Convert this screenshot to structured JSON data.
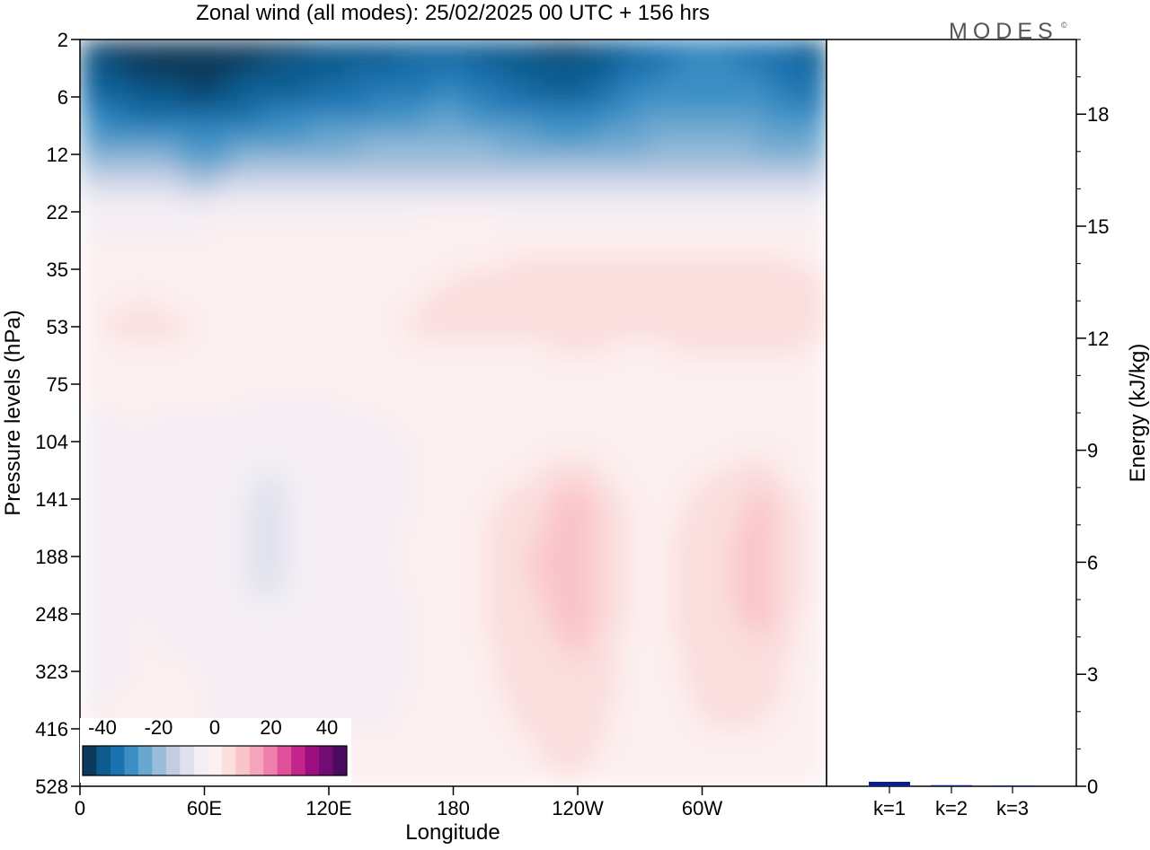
{
  "chart_data": [
    {
      "type": "heatmap",
      "title": "Zonal wind (all modes):  25/02/2025  00 UTC  + 156 hrs",
      "xlabel": "Longitude",
      "ylabel": "Pressure levels (hPa)",
      "x_ticks": [
        "0",
        "60E",
        "120E",
        "180",
        "120W",
        "60W"
      ],
      "x_tick_degrees": [
        0,
        60,
        120,
        180,
        240,
        300
      ],
      "xlim_degrees": [
        0,
        360
      ],
      "y_ticks": [
        "2",
        "6",
        "12",
        "22",
        "35",
        "53",
        "75",
        "104",
        "141",
        "188",
        "248",
        "323",
        "416",
        "528"
      ],
      "y_axis_inverted": true,
      "colorbar": {
        "tick_labels": [
          "-40",
          "-20",
          "0",
          "20",
          "40"
        ],
        "range": [
          -40,
          40
        ],
        "colors": [
          "#0b3a5c",
          "#0e5c8e",
          "#1a73b0",
          "#3b8fc4",
          "#6aa7cf",
          "#98bcd9",
          "#c2cde2",
          "#dfe2ee",
          "#f4eef4",
          "#fdf0f0",
          "#fbdede",
          "#f9c5cb",
          "#f5a6bd",
          "#ef7fac",
          "#e04f9a",
          "#c2268a",
          "#9c0d7d",
          "#720b74",
          "#4b0b5e"
        ]
      },
      "field_levels_hPa": [
        2,
        6,
        12,
        22,
        35,
        53,
        75,
        104,
        141,
        188,
        248,
        323,
        416,
        528
      ],
      "field_lon_degrees": [
        0,
        30,
        60,
        90,
        120,
        150,
        180,
        210,
        240,
        270,
        300,
        330,
        360
      ],
      "field_values_ms": [
        [
          -36,
          -40,
          -40,
          -38,
          -36,
          -34,
          -33,
          -36,
          -38,
          -32,
          -28,
          -30,
          -36
        ],
        [
          -30,
          -34,
          -36,
          -32,
          -30,
          -28,
          -26,
          -30,
          -32,
          -26,
          -24,
          -26,
          -30
        ],
        [
          -18,
          -20,
          -22,
          -20,
          -18,
          -17,
          -17,
          -18,
          -20,
          -18,
          -18,
          -18,
          -18
        ],
        [
          -4,
          -4,
          -4,
          -3,
          -3,
          -3,
          -2,
          -3,
          -3,
          -3,
          -3,
          -3,
          -3
        ],
        [
          1,
          1,
          1,
          1,
          0,
          1,
          2,
          3,
          3,
          3,
          3,
          4,
          2
        ],
        [
          2,
          3,
          2,
          2,
          1,
          2,
          3,
          4,
          4,
          4,
          4,
          5,
          3
        ],
        [
          -2,
          0,
          0,
          0,
          0,
          0,
          0,
          -2,
          0,
          -2,
          0,
          0,
          -1
        ],
        [
          -3,
          -3,
          -5,
          -6,
          -6,
          -3,
          0,
          -2,
          1,
          -2,
          0,
          0,
          -2
        ],
        [
          -4,
          -3,
          -4,
          -7,
          -5,
          -3,
          0,
          3,
          9,
          0,
          3,
          8,
          -2
        ],
        [
          -3,
          -3,
          -4,
          -8,
          -4,
          -2,
          0,
          5,
          11,
          0,
          4,
          9,
          -2
        ],
        [
          -3,
          -2,
          -3,
          -6,
          -4,
          -3,
          0,
          4,
          9,
          0,
          4,
          8,
          -2
        ],
        [
          -3,
          -2,
          -2,
          -4,
          -3,
          -3,
          0,
          3,
          6,
          0,
          3,
          5,
          -3
        ],
        [
          -2,
          -1,
          -2,
          -3,
          -2,
          -2,
          0,
          2,
          4,
          0,
          2,
          2,
          -2
        ],
        [
          -1,
          0,
          -1,
          -1,
          -1,
          0,
          0,
          1,
          2,
          0,
          0,
          0,
          -2
        ]
      ]
    },
    {
      "type": "bar",
      "categories": [
        "k=1",
        "k=2",
        "k=3"
      ],
      "values": [
        0.12,
        0.03,
        0.02
      ],
      "ylabel": "Energy (kJ/kg)",
      "ylim": [
        0,
        20
      ],
      "y_ticks": [
        "0",
        "3",
        "6",
        "9",
        "12",
        "15",
        "18"
      ],
      "bar_color": "#0a1e8c"
    }
  ],
  "logo": {
    "text": "MODES",
    "mark": "©"
  }
}
